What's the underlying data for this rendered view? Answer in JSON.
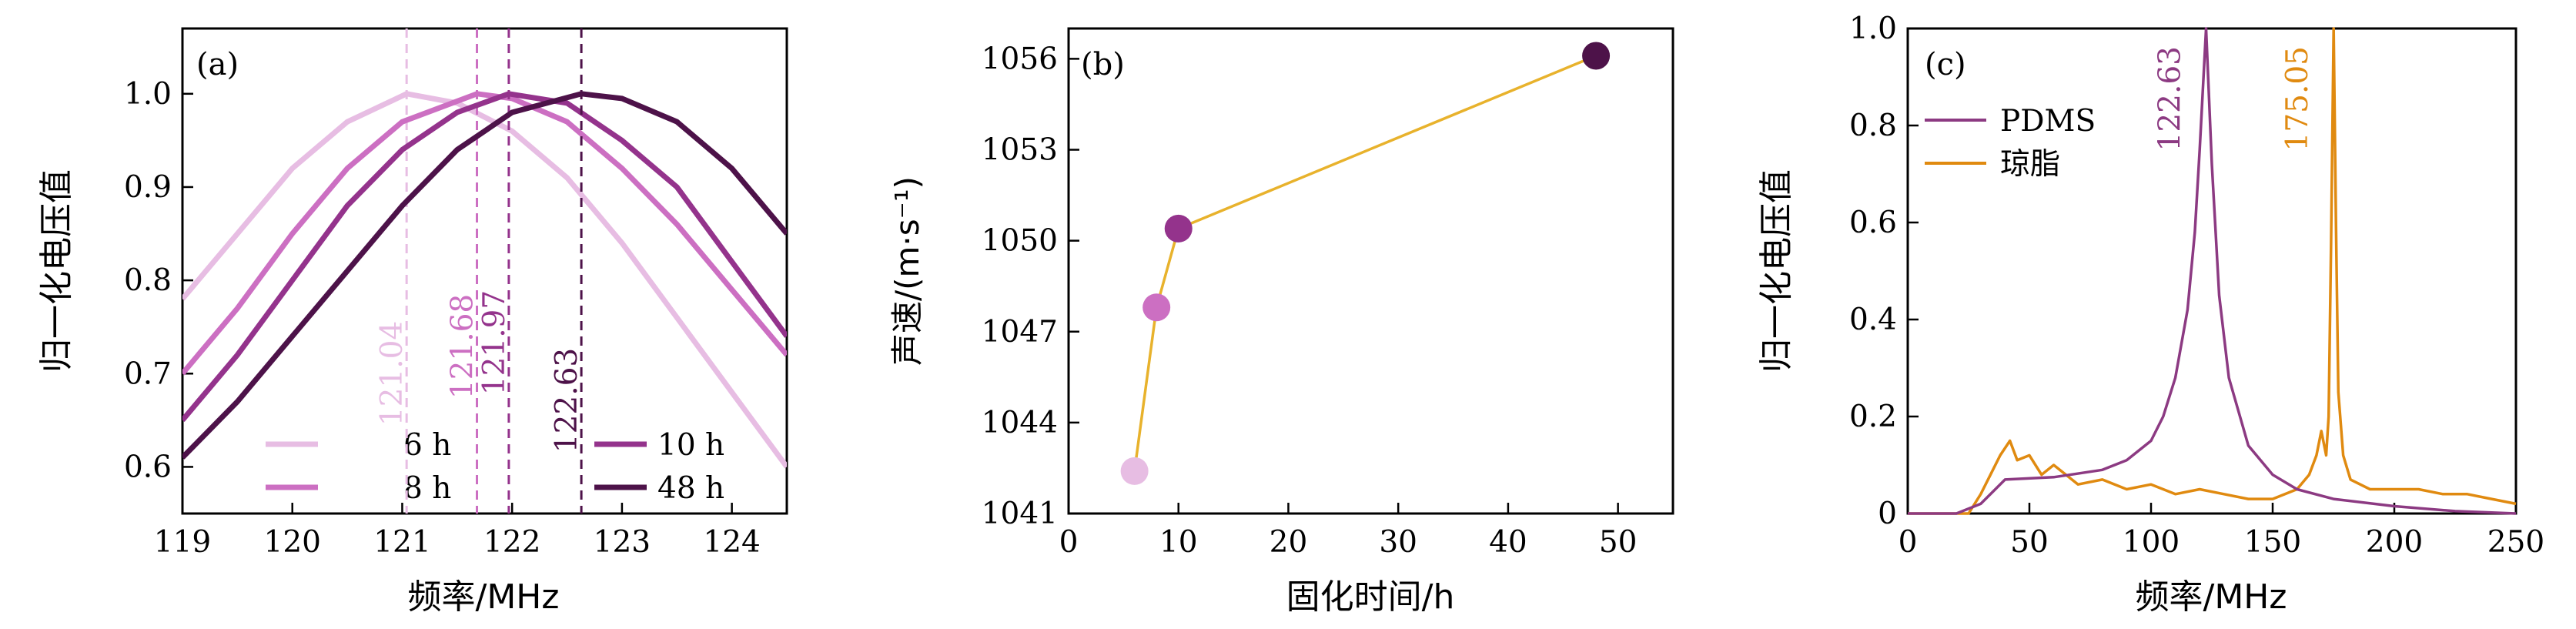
{
  "chart_data": [
    {
      "type": "line",
      "panel_label": "(a)",
      "xlabel": "频率/MHz",
      "ylabel": "归一化电压值",
      "xlim": [
        119,
        124.5
      ],
      "ylim": [
        0.55,
        1.07
      ],
      "xticks": [
        119,
        120,
        121,
        122,
        123,
        124
      ],
      "yticks": [
        0.6,
        0.7,
        0.8,
        0.9,
        1.0
      ],
      "ytick_labels": [
        "0.6",
        "0.7",
        "0.8",
        "0.9",
        "1.0"
      ],
      "series": [
        {
          "name": "6 h",
          "peak": 121.04,
          "color": "#e7bde3",
          "x": [
            119,
            119.5,
            120,
            120.5,
            121.04,
            121.5,
            122,
            122.5,
            123,
            123.5,
            124,
            124.5
          ],
          "y": [
            0.78,
            0.85,
            0.92,
            0.97,
            1.0,
            0.99,
            0.96,
            0.91,
            0.84,
            0.76,
            0.68,
            0.6
          ]
        },
        {
          "name": "8 h",
          "peak": 121.68,
          "color": "#cc6fc2",
          "x": [
            119,
            119.5,
            120,
            120.5,
            121,
            121.68,
            122,
            122.5,
            123,
            123.5,
            124,
            124.5
          ],
          "y": [
            0.7,
            0.77,
            0.85,
            0.92,
            0.97,
            1.0,
            0.995,
            0.97,
            0.92,
            0.86,
            0.79,
            0.72
          ]
        },
        {
          "name": "10 h",
          "peak": 121.97,
          "color": "#94338c",
          "x": [
            119,
            119.5,
            120,
            120.5,
            121,
            121.5,
            121.97,
            122.5,
            123,
            123.5,
            124,
            124.5
          ],
          "y": [
            0.65,
            0.72,
            0.8,
            0.88,
            0.94,
            0.98,
            1.0,
            0.99,
            0.95,
            0.9,
            0.82,
            0.74
          ]
        },
        {
          "name": "48 h",
          "peak": 122.63,
          "color": "#4d1249",
          "x": [
            119,
            119.5,
            120,
            120.5,
            121,
            121.5,
            122,
            122.63,
            123,
            123.5,
            124,
            124.5
          ],
          "y": [
            0.61,
            0.67,
            0.74,
            0.81,
            0.88,
            0.94,
            0.98,
            1.0,
            0.995,
            0.97,
            0.92,
            0.85
          ]
        }
      ],
      "peak_labels": [
        "121.04",
        "121.68",
        "121.97",
        "122.63"
      ],
      "legend": "bottom"
    },
    {
      "type": "scatter",
      "panel_label": "(b)",
      "xlabel": "固化时间/h",
      "ylabel": "声速/(m·s⁻¹)",
      "xlim": [
        0,
        55
      ],
      "ylim": [
        1041,
        1057
      ],
      "xticks": [
        0,
        10,
        20,
        30,
        40,
        50
      ],
      "yticks": [
        1041,
        1044,
        1047,
        1050,
        1053,
        1056
      ],
      "points": [
        {
          "x": 6,
          "y": 1042.4,
          "color": "#e7bde3"
        },
        {
          "x": 8,
          "y": 1047.8,
          "color": "#cc6fc2"
        },
        {
          "x": 10,
          "y": 1050.4,
          "color": "#94338c"
        },
        {
          "x": 48,
          "y": 1056.1,
          "color": "#4d1249"
        }
      ],
      "line_color": "#e8b22c"
    },
    {
      "type": "line",
      "panel_label": "(c)",
      "xlabel": "频率/MHz",
      "ylabel": "归一化电压值",
      "xlim": [
        0,
        250
      ],
      "ylim": [
        0,
        1.0
      ],
      "xticks": [
        0,
        50,
        100,
        150,
        200,
        250
      ],
      "yticks": [
        0,
        0.2,
        0.4,
        0.6,
        0.8,
        1.0
      ],
      "ytick_labels": [
        "0",
        "0.2",
        "0.4",
        "0.6",
        "0.8",
        "1.0"
      ],
      "series": [
        {
          "name": "PDMS",
          "color": "#8c3a82",
          "peak": 122.63,
          "x": [
            0,
            20,
            30,
            40,
            60,
            80,
            90,
            100,
            105,
            110,
            115,
            118,
            120,
            122.63,
            125,
            128,
            132,
            140,
            150,
            160,
            175,
            200,
            225,
            250
          ],
          "y": [
            0.0,
            0.0,
            0.02,
            0.07,
            0.075,
            0.09,
            0.11,
            0.15,
            0.2,
            0.28,
            0.42,
            0.58,
            0.75,
            1.0,
            0.72,
            0.45,
            0.28,
            0.14,
            0.08,
            0.05,
            0.03,
            0.015,
            0.005,
            0.0
          ]
        },
        {
          "name": "琼脂",
          "color": "#e08a10",
          "peak": 175.05,
          "x": [
            0,
            25,
            30,
            35,
            38,
            42,
            45,
            50,
            55,
            60,
            70,
            80,
            90,
            100,
            110,
            120,
            130,
            140,
            150,
            160,
            165,
            168,
            170,
            172,
            173,
            174,
            175.05,
            176,
            177,
            179,
            182,
            190,
            200,
            210,
            220,
            230,
            240,
            250
          ],
          "y": [
            0.0,
            0.0,
            0.04,
            0.09,
            0.12,
            0.15,
            0.11,
            0.12,
            0.08,
            0.1,
            0.06,
            0.07,
            0.05,
            0.06,
            0.04,
            0.05,
            0.04,
            0.03,
            0.03,
            0.05,
            0.08,
            0.12,
            0.17,
            0.12,
            0.2,
            0.55,
            1.0,
            0.6,
            0.25,
            0.12,
            0.07,
            0.05,
            0.05,
            0.05,
            0.04,
            0.04,
            0.03,
            0.02
          ]
        }
      ],
      "peak_labels": [
        "122.63",
        "175.05"
      ],
      "legend": "top-left"
    }
  ]
}
